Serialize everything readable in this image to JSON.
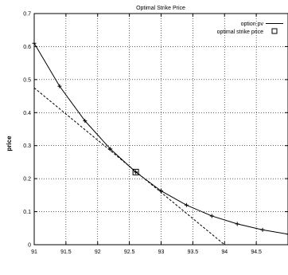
{
  "chart_data": {
    "type": "line",
    "title": "Optimal Strike Price",
    "xlabel": "",
    "ylabel": "price",
    "xlim": [
      91,
      95
    ],
    "ylim": [
      0,
      0.7
    ],
    "x_ticks": [
      91,
      91.5,
      92,
      92.5,
      93,
      93.5,
      94,
      94.5
    ],
    "x_tick_labels": [
      "91",
      "91.5",
      "92",
      "92.5",
      "93",
      "93.5",
      "94",
      "94.5"
    ],
    "y_ticks": [
      0,
      0.1,
      0.2,
      0.3,
      0.4,
      0.5,
      0.6,
      0.7
    ],
    "y_tick_labels": [
      "0",
      "0.1",
      "0.2",
      "0.3",
      "0.4",
      "0.5",
      "0.6",
      "0.7"
    ],
    "grid": true,
    "legend_position": "top-right",
    "series": [
      {
        "name": "option pv",
        "style": "solid-with-plus-markers",
        "color": "#000000",
        "x": [
          91.0,
          91.4,
          91.8,
          92.2,
          92.6,
          93.0,
          93.4,
          93.8,
          94.2,
          94.6,
          95.0
        ],
        "y": [
          0.61,
          0.48,
          0.375,
          0.29,
          0.22,
          0.163,
          0.12,
          0.087,
          0.063,
          0.045,
          0.032
        ]
      },
      {
        "name": "",
        "style": "dashed",
        "color": "#000000",
        "x": [
          91.0,
          94.0
        ],
        "y": [
          0.475,
          0.0
        ]
      },
      {
        "name": "optimal strike price",
        "style": "square-marker",
        "color": "#000000",
        "x": [
          92.6
        ],
        "y": [
          0.22
        ]
      }
    ]
  }
}
